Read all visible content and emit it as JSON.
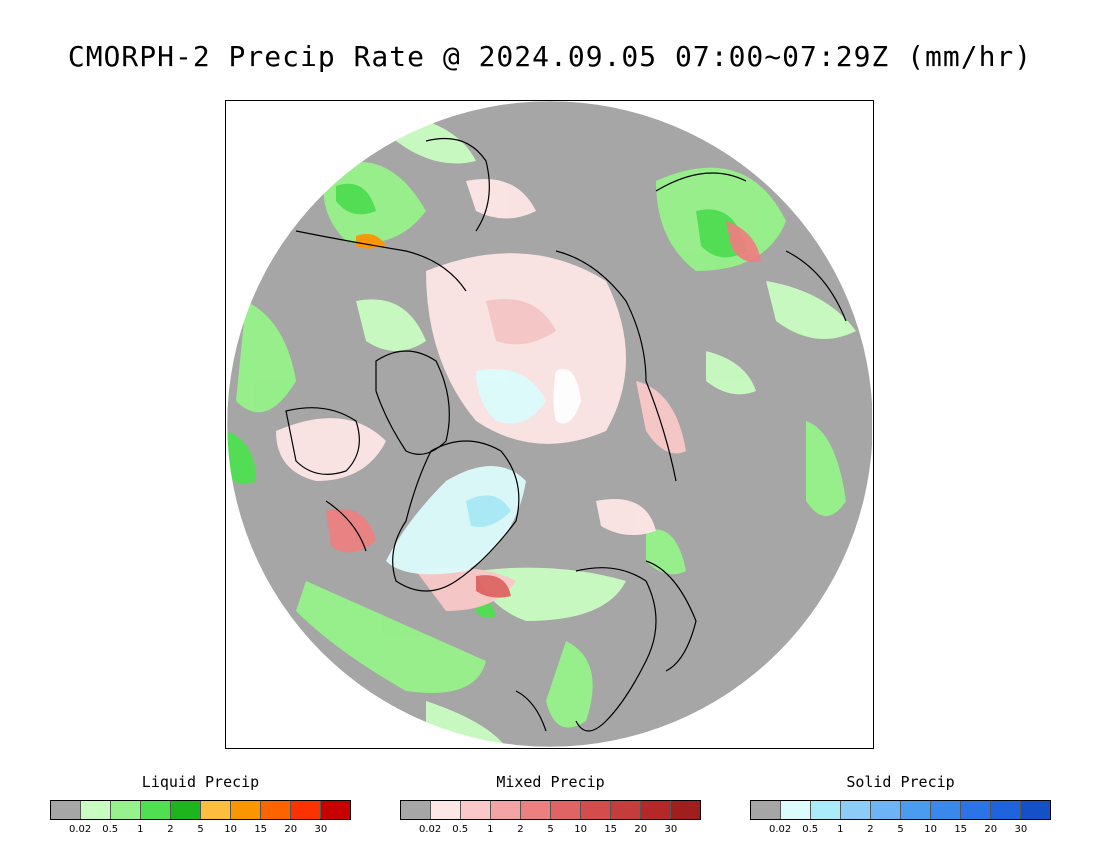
{
  "title": "CMORPH-2 Precip Rate @ 2024.09.05 07:00~07:29Z (mm/hr)",
  "map": {
    "projection": "north polar stereographic",
    "background_color": "#a6a6a6",
    "outside_color": "#ffffff",
    "coastline_color": "#000000"
  },
  "legends": [
    {
      "title": "Liquid Precip",
      "ticks": [
        "0.02",
        "0.5",
        "1",
        "2",
        "5",
        "10",
        "15",
        "20",
        "30"
      ],
      "colors": [
        "#a6a6a6",
        "#c8fcc0",
        "#96f28a",
        "#4ee050",
        "#1eb41e",
        "#fcbe3c",
        "#fc9600",
        "#fc6400",
        "#fc3200",
        "#c80000"
      ]
    },
    {
      "title": "Mixed Precip",
      "ticks": [
        "0.02",
        "0.5",
        "1",
        "2",
        "5",
        "10",
        "15",
        "20",
        "30"
      ],
      "colors": [
        "#a6a6a6",
        "#fde6e6",
        "#fac8c8",
        "#f4a4a4",
        "#ec8080",
        "#e06464",
        "#d44c4c",
        "#c43c3c",
        "#b42828",
        "#a01e1e"
      ]
    },
    {
      "title": "Solid Precip",
      "ticks": [
        "0.02",
        "0.5",
        "1",
        "2",
        "5",
        "10",
        "15",
        "20",
        "30"
      ],
      "colors": [
        "#a6a6a6",
        "#dcfcfc",
        "#aaecfa",
        "#8ccdf8",
        "#6cb4f4",
        "#4a9cf0",
        "#3a88ec",
        "#2a74e6",
        "#1e64dc",
        "#1450c8"
      ]
    }
  ]
}
